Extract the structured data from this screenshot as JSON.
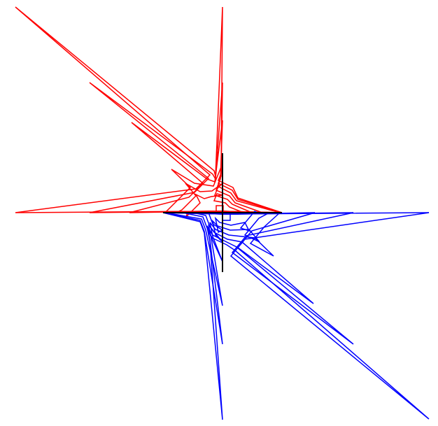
{
  "colors": {
    "background": "#ffffff",
    "upper_curves": "#ff0000",
    "lower_curves": "#0000ff",
    "axes": "#000000"
  },
  "diagram": {
    "description_type": "nested star-shaped level curves around crossed axes",
    "level_count": 7,
    "has_axes": true
  }
}
